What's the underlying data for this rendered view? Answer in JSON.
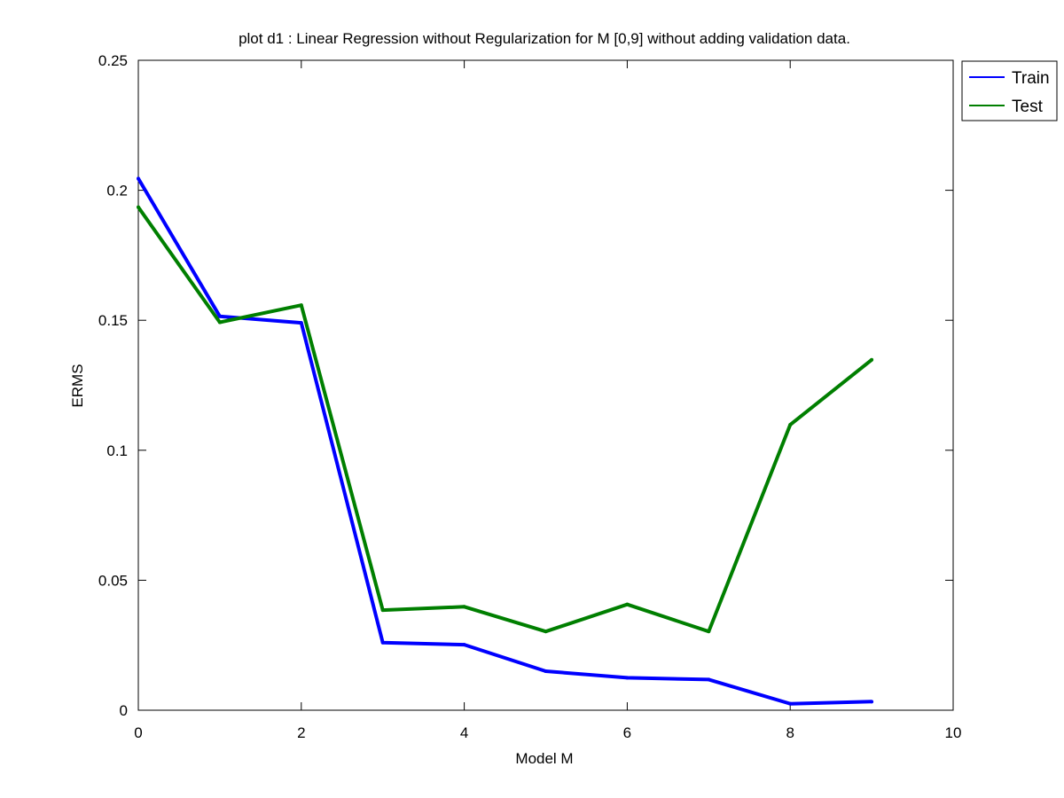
{
  "chart_data": {
    "type": "line",
    "title": "plot d1 : Linear Regression without Regularization for M [0,9] without adding validation data.",
    "xlabel": "Model M",
    "ylabel": "ERMS",
    "xlim": [
      0,
      10
    ],
    "ylim": [
      0,
      0.25
    ],
    "xticks": [
      0,
      2,
      4,
      6,
      8,
      10
    ],
    "xtick_labels": [
      "0",
      "2",
      "4",
      "6",
      "8",
      "10"
    ],
    "yticks": [
      0,
      0.05,
      0.1,
      0.15,
      0.2,
      0.25
    ],
    "ytick_labels": [
      "0",
      "0.05",
      "0.1",
      "0.15",
      "0.2",
      "0.25"
    ],
    "grid": false,
    "legend_position": "outside-top-right",
    "x": [
      0,
      1,
      2,
      3,
      4,
      5,
      6,
      7,
      8,
      9
    ],
    "series": [
      {
        "name": "Train",
        "color": "#0000ff",
        "values": [
          0.2045,
          0.1515,
          0.149,
          0.026,
          0.0252,
          0.015,
          0.0125,
          0.0118,
          0.0025,
          0.0033
        ]
      },
      {
        "name": "Test",
        "color": "#007f00",
        "values": [
          0.1935,
          0.1492,
          0.1558,
          0.0385,
          0.0398,
          0.0303,
          0.0407,
          0.0303,
          0.1098,
          0.1348
        ]
      }
    ]
  }
}
